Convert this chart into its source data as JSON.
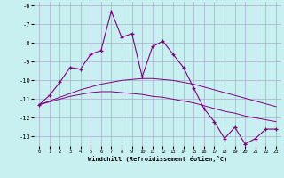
{
  "xlabel": "Windchill (Refroidissement éolien,°C)",
  "x": [
    0,
    1,
    2,
    3,
    4,
    5,
    6,
    7,
    8,
    9,
    10,
    11,
    12,
    13,
    14,
    15,
    16,
    17,
    18,
    19,
    20,
    21,
    22,
    23
  ],
  "y_main": [
    -11.3,
    -10.8,
    -10.1,
    -9.3,
    -9.4,
    -8.6,
    -8.4,
    -6.3,
    -7.7,
    -7.5,
    -9.8,
    -8.2,
    -7.9,
    -8.6,
    -9.3,
    -10.4,
    -11.5,
    -12.2,
    -13.1,
    -12.5,
    -13.4,
    -13.1,
    -12.6,
    -12.6
  ],
  "y_line1": [
    -11.3,
    -11.1,
    -10.9,
    -10.7,
    -10.5,
    -10.35,
    -10.2,
    -10.1,
    -10.0,
    -9.95,
    -9.9,
    -9.9,
    -9.95,
    -10.0,
    -10.1,
    -10.2,
    -10.35,
    -10.5,
    -10.65,
    -10.8,
    -10.95,
    -11.1,
    -11.25,
    -11.4
  ],
  "y_line2": [
    -11.3,
    -11.15,
    -11.0,
    -10.85,
    -10.75,
    -10.65,
    -10.6,
    -10.6,
    -10.65,
    -10.7,
    -10.75,
    -10.85,
    -10.9,
    -11.0,
    -11.1,
    -11.2,
    -11.35,
    -11.5,
    -11.65,
    -11.75,
    -11.9,
    -12.0,
    -12.1,
    -12.2
  ],
  "color": "#800080",
  "bg_color": "#c8f0f0",
  "grid_color": "#aaaacc",
  "ylim": [
    -13.5,
    -5.8
  ],
  "yticks": [
    -13,
    -12,
    -11,
    -10,
    -9,
    -8,
    -7,
    -6
  ],
  "xticks": [
    0,
    1,
    2,
    3,
    4,
    5,
    6,
    7,
    8,
    9,
    10,
    11,
    12,
    13,
    14,
    15,
    16,
    17,
    18,
    19,
    20,
    21,
    22,
    23
  ]
}
